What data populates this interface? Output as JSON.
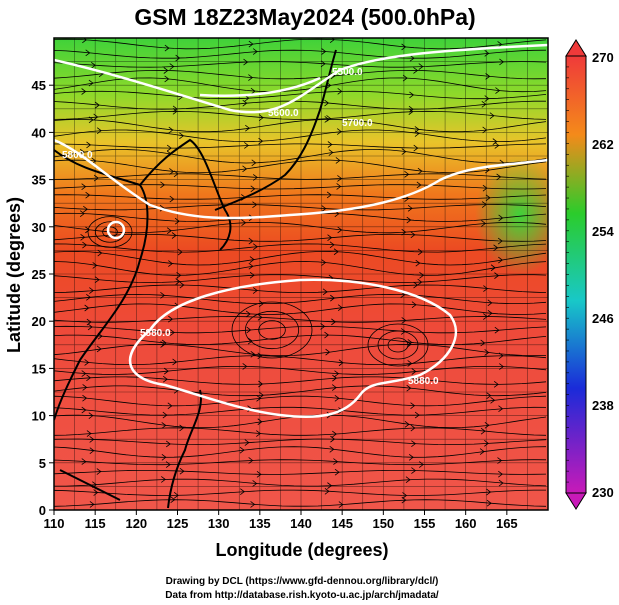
{
  "title": "GSM 18Z23May2024 (500.0hPa)",
  "xlabel": "Longitude (degrees)",
  "ylabel": "Latitude  (degrees)",
  "x_ticks": [
    "110",
    "115",
    "120",
    "125",
    "130",
    "135",
    "140",
    "145",
    "150",
    "155",
    "160",
    "165"
  ],
  "y_ticks": [
    "0",
    "5",
    "10",
    "15",
    "20",
    "25",
    "30",
    "35",
    "40",
    "45"
  ],
  "colorbar": {
    "labels": [
      "270",
      "262",
      "254",
      "246",
      "238",
      "230"
    ],
    "colors": [
      "#ef3a3a",
      "#f48a1a",
      "#2bcc2b",
      "#18c8c8",
      "#1a2bd9",
      "#c81ab8"
    ]
  },
  "contours": [
    {
      "label": "5500.0"
    },
    {
      "label": "5600.0"
    },
    {
      "label": "5700.0"
    },
    {
      "label": "5800.0"
    },
    {
      "label": "5880.0"
    },
    {
      "label": "5880.0"
    }
  ],
  "credits": {
    "line1": "Drawing by DCL (https://www.gfd-dennou.org/library/dcl/)",
    "line2": "Data from http://database.rish.kyoto-u.ac.jp/arch/jmadata/"
  }
}
